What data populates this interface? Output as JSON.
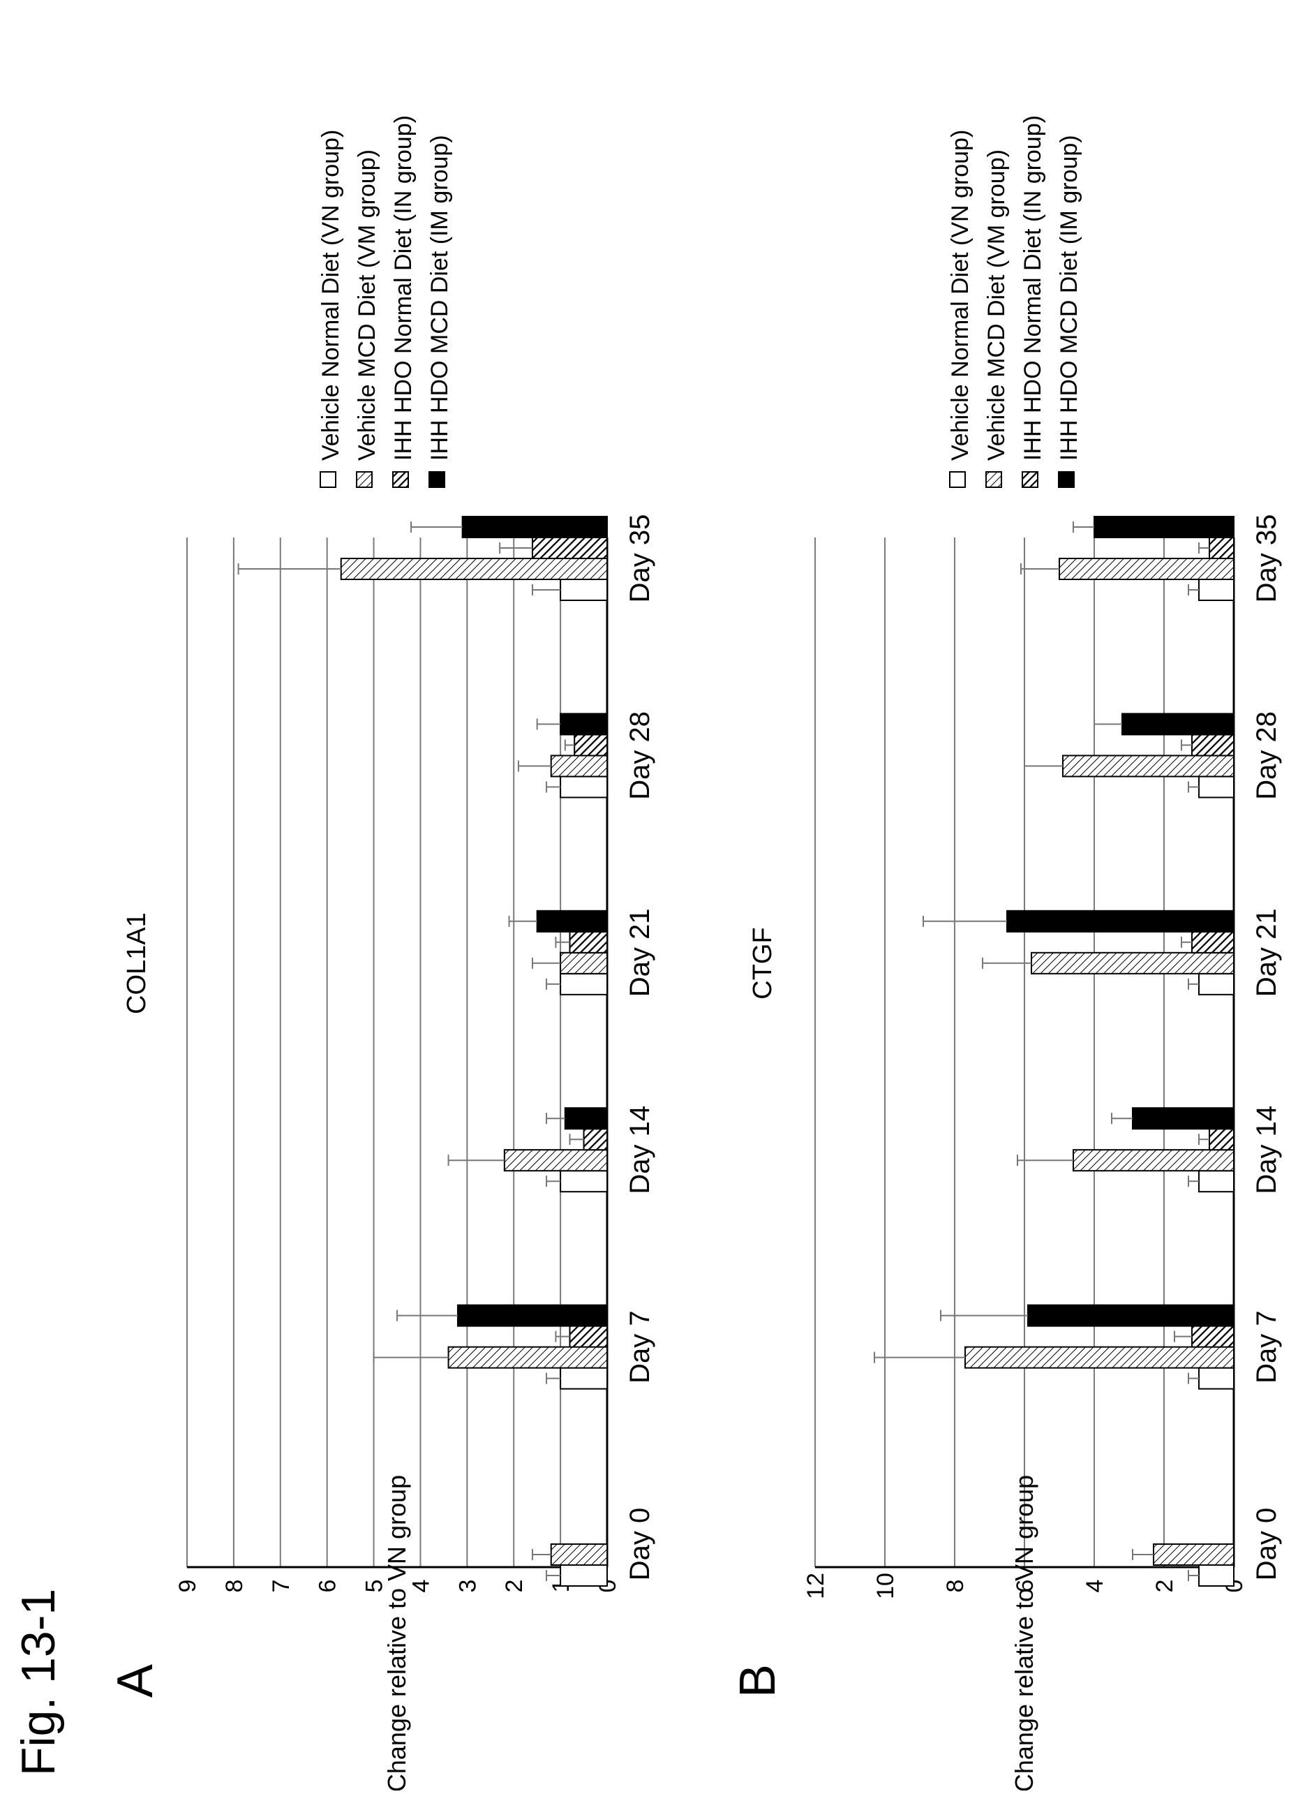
{
  "figure_label": "Fig. 13-1",
  "panel_labels": [
    "A",
    "B"
  ],
  "legend": [
    "Vehicle Normal Diet (VN group)",
    "Vehicle MCD Diet (VM group)",
    "IHH HDO Normal Diet (IN group)",
    "IHH HDO MCD Diet (IM group)"
  ],
  "chart_data": [
    {
      "type": "bar",
      "title": "COL1A1",
      "ylabel": "Change relative to VN group",
      "xlabel": "",
      "categories": [
        "Day 0",
        "Day 7",
        "Day 14",
        "Day 21",
        "Day 28",
        "Day 35"
      ],
      "ylim": [
        0,
        9
      ],
      "yticks": [
        0,
        1,
        2,
        3,
        4,
        5,
        6,
        7,
        8,
        9
      ],
      "grid": true,
      "legend_position": "right",
      "series": [
        {
          "name": "Vehicle Normal Diet (VN group)",
          "values": [
            1.0,
            1.0,
            1.0,
            1.0,
            1.0,
            1.0
          ],
          "errors": [
            0.3,
            0.3,
            0.3,
            0.3,
            0.3,
            0.6
          ]
        },
        {
          "name": "Vehicle MCD Diet (VM group)",
          "values": [
            1.2,
            3.4,
            2.2,
            1.0,
            1.2,
            5.7
          ],
          "errors": [
            0.4,
            1.6,
            1.2,
            0.6,
            0.7,
            2.2
          ]
        },
        {
          "name": "IHH HDO Normal Diet (IN group)",
          "values": [
            null,
            0.8,
            0.5,
            0.8,
            0.7,
            1.6
          ],
          "errors": [
            null,
            0.3,
            0.3,
            0.3,
            0.2,
            0.7
          ]
        },
        {
          "name": "IHH HDO MCD Diet (IM group)",
          "values": [
            null,
            3.2,
            0.9,
            1.5,
            1.0,
            3.1
          ],
          "errors": [
            null,
            1.3,
            0.4,
            0.6,
            0.5,
            1.1
          ]
        }
      ]
    },
    {
      "type": "bar",
      "title": "CTGF",
      "ylabel": "Change relative to VN group",
      "xlabel": "",
      "categories": [
        "Day 0",
        "Day 7",
        "Day 14",
        "Day 21",
        "Day 28",
        "Day 35"
      ],
      "ylim": [
        0,
        12
      ],
      "yticks": [
        0,
        2,
        4,
        6,
        8,
        10,
        12
      ],
      "grid": true,
      "legend_position": "right",
      "series": [
        {
          "name": "Vehicle Normal Diet (VN group)",
          "values": [
            1.0,
            1.0,
            1.0,
            1.0,
            1.0,
            1.0
          ],
          "errors": [
            0.3,
            0.3,
            0.3,
            0.3,
            0.3,
            0.3
          ]
        },
        {
          "name": "Vehicle MCD Diet (VM group)",
          "values": [
            2.3,
            7.7,
            4.6,
            5.8,
            4.9,
            5.0
          ],
          "errors": [
            0.6,
            2.6,
            1.6,
            1.4,
            1.1,
            1.1
          ]
        },
        {
          "name": "IHH HDO Normal Diet (IN group)",
          "values": [
            null,
            1.2,
            0.7,
            1.2,
            1.2,
            0.7
          ],
          "errors": [
            null,
            0.5,
            0.3,
            0.3,
            0.3,
            0.3
          ]
        },
        {
          "name": "IHH HDO MCD Diet (IM group)",
          "values": [
            null,
            5.9,
            2.9,
            6.5,
            3.2,
            4.0
          ],
          "errors": [
            null,
            2.5,
            0.6,
            2.4,
            0.8,
            0.6
          ]
        }
      ]
    }
  ]
}
